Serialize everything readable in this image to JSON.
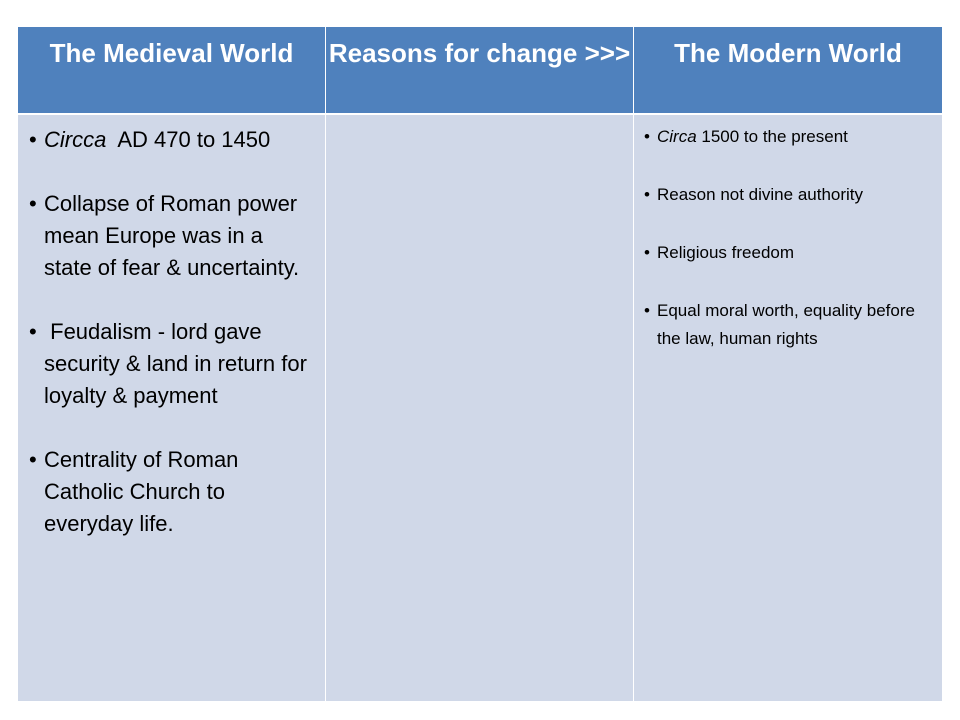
{
  "table": {
    "headers": [
      "The  Medieval World",
      "Reasons for change >>>",
      "The Modern World"
    ],
    "medieval": [
      {
        "italic": "Circca",
        "text": "  AD 470 to 1450"
      },
      {
        "italic": "",
        "text": "Collapse of Roman power mean Europe was in a state of fear & uncertainty."
      },
      {
        "italic": "",
        "text": " Feudalism - lord gave security & land in return for loyalty & payment"
      },
      {
        "italic": "",
        "text": "Centrality of Roman Catholic Church to everyday life."
      }
    ],
    "reasons": [],
    "modern": [
      {
        "italic": "Circa",
        "text": " 1500 to the present"
      },
      {
        "italic": "",
        "text": "Reason not divine authority"
      },
      {
        "italic": "",
        "text": "Religious freedom"
      },
      {
        "italic": "",
        "text": "Equal moral worth, equality before the law, human rights"
      }
    ]
  },
  "colors": {
    "header_bg": "#4f81bd",
    "body_bg": "#d0d8e8"
  }
}
